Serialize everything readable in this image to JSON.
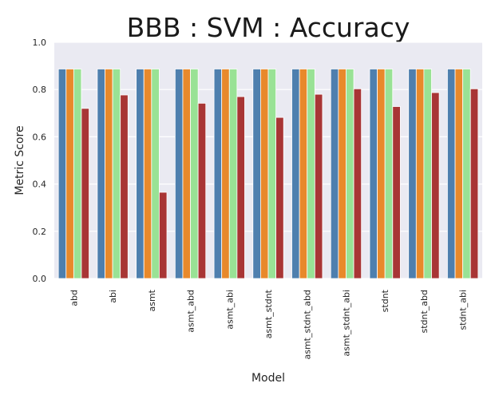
{
  "chart_data": {
    "type": "bar",
    "title": "BBB : SVM : Accuracy",
    "xlabel": "Model",
    "ylabel": "Metric Score",
    "ylim": [
      0,
      1.0
    ],
    "yticks": [
      "0.0",
      "0.2",
      "0.4",
      "0.6",
      "0.8",
      "1.0"
    ],
    "grid": true,
    "legend": "none",
    "categories": [
      "abd",
      "abi",
      "asmt",
      "asmt_abd",
      "asmt_abi",
      "asmt_stdnt",
      "asmt_stdnt_abd",
      "asmt_stdnt_abi",
      "stdnt",
      "stdnt_abd",
      "stdnt_abi"
    ],
    "series": [
      {
        "color": "#4e7fae",
        "values": [
          0.887,
          0.887,
          0.887,
          0.887,
          0.887,
          0.887,
          0.887,
          0.887,
          0.887,
          0.887,
          0.887
        ]
      },
      {
        "color": "#e8892b",
        "values": [
          0.887,
          0.887,
          0.887,
          0.887,
          0.887,
          0.887,
          0.887,
          0.887,
          0.887,
          0.887,
          0.887
        ]
      },
      {
        "color": "#99e295",
        "values": [
          0.887,
          0.887,
          0.887,
          0.887,
          0.887,
          0.887,
          0.887,
          0.887,
          0.887,
          0.887,
          0.887
        ]
      },
      {
        "color": "#a83535",
        "values": [
          0.72,
          0.777,
          0.365,
          0.742,
          0.77,
          0.682,
          0.78,
          0.803,
          0.728,
          0.787,
          0.803
        ]
      }
    ],
    "background_color": "#eaeaf2"
  }
}
